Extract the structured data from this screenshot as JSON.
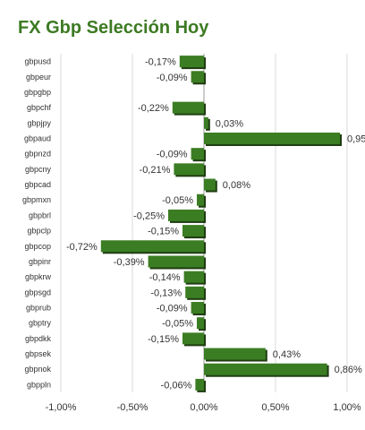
{
  "chart_data": {
    "type": "bar",
    "orientation": "horizontal",
    "title": "FX Gbp Selección Hoy",
    "categories": [
      "gbpusd",
      "gbpeur",
      "gbpgbp",
      "gbpchf",
      "gbpjpy",
      "gbpaud",
      "gbpnzd",
      "gbpcny",
      "gbpcad",
      "gbpmxn",
      "gbpbrl",
      "gbpclp",
      "gbpcop",
      "gbpinr",
      "gbpkrw",
      "gbpsgd",
      "gbprub",
      "gbptry",
      "gbpdkk",
      "gbpsek",
      "gbpnok",
      "gbppln"
    ],
    "values": [
      -0.17,
      -0.09,
      null,
      -0.22,
      0.03,
      0.95,
      -0.09,
      -0.21,
      0.08,
      -0.05,
      -0.25,
      -0.15,
      -0.72,
      -0.39,
      -0.14,
      -0.13,
      -0.09,
      -0.05,
      -0.15,
      0.43,
      0.86,
      -0.06
    ],
    "value_labels": [
      "-0,17%",
      "-0,09%",
      "",
      "-0,22%",
      "0,03%",
      "0,95",
      "-0,09%",
      "-0,21%",
      "0,08%",
      "-0,05%",
      "-0,25%",
      "-0,15%",
      "-0,72%",
      "-0,39%",
      "-0,14%",
      "-0,13%",
      "-0,09%",
      "-0,05%",
      "-0,15%",
      "0,43%",
      "0,86%",
      "-0,06%"
    ],
    "xlim": [
      -1.0,
      1.0
    ],
    "xticks": [
      -1.0,
      -0.5,
      0.0,
      0.5,
      1.0
    ],
    "xtick_labels": [
      "-1,00%",
      "-0,50%",
      "0,00%",
      "0,50%",
      "1,00%"
    ],
    "xlabel": "",
    "ylabel": "",
    "grid": true,
    "legend": "none",
    "colors": {
      "bar": "#3b7d23",
      "bar_shadow": "#1f3d12",
      "title": "#3d7a23",
      "grid": "#d9d9d9",
      "axis": "#999999",
      "text": "#333333"
    }
  }
}
